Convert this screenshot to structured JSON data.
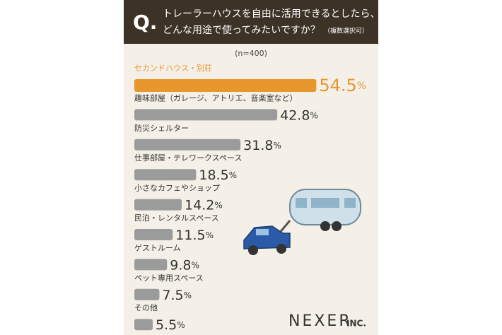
{
  "chart_data": {
    "type": "bar",
    "orientation": "horizontal",
    "title_mark": "Q.",
    "title_lines": [
      "トレーラーハウスを自由に活用できるとしたら、",
      "どんな用途で使ってみたいですか？"
    ],
    "title_note": "（複数選択可）",
    "subtitle": "(n=400)",
    "categories": [
      "セカンドハウス・別荘",
      "趣味部屋（ガレージ、アトリエ、音楽室など）",
      "防災シェルター",
      "仕事部屋・テレワークスペース",
      "小さなカフェやショップ",
      "民泊・レンタルスペース",
      "ゲストルーム",
      "ペット専用スペース",
      "その他"
    ],
    "values": [
      54.5,
      42.8,
      31.8,
      18.5,
      14.2,
      11.5,
      9.8,
      7.5,
      5.5
    ],
    "value_labels": [
      "54.5%",
      "42.8%",
      "31.8%",
      "18.5%",
      "14.2%",
      "11.5%",
      "9.8%",
      "7.5%",
      "5.5%"
    ],
    "colors": [
      "#e8962e",
      "#9b9b9b",
      "#9b9b9b",
      "#9b9b9b",
      "#9b9b9b",
      "#9b9b9b",
      "#9b9b9b",
      "#9b9b9b",
      "#9b9b9b"
    ],
    "xlim": [
      0,
      72
    ],
    "logo": "NEXER",
    "logo_suffix": "INC."
  }
}
